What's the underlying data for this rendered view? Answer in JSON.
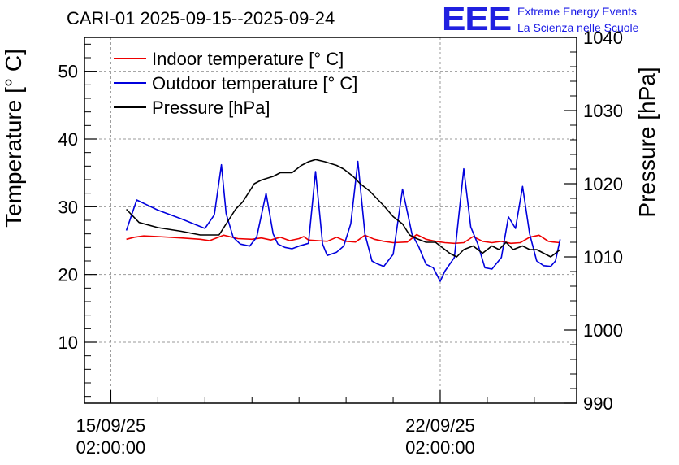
{
  "header": {
    "title": "CARI-01 2025-09-15--2025-09-24",
    "logo_mark": "EEE",
    "logo_line1": "Extreme Energy Events",
    "logo_line2": "La Scienza nelle Scuole"
  },
  "chart_data": {
    "type": "line",
    "title": "CARI-01 2025-09-15--2025-09-24",
    "xlabel": "",
    "ylabel": "Temperature [° C]",
    "y2label": "Pressure [hPa]",
    "ylim": [
      1,
      55
    ],
    "y2lim": [
      990,
      1040
    ],
    "xlim": [
      14.44,
      24.9
    ],
    "xunit": "day of September 2025",
    "xticks": [
      {
        "x": 15.0,
        "line1": "15/09/25",
        "line2": "02:00:00"
      },
      {
        "x": 22.0,
        "line1": "22/09/25",
        "line2": "02:00:00"
      }
    ],
    "yticks": [
      "10",
      "20",
      "30",
      "40",
      "50"
    ],
    "y2ticks": [
      "990",
      "1000",
      "1010",
      "1020",
      "1030",
      "1040"
    ],
    "grid": true,
    "legend_position": "top-left",
    "colors": {
      "indoor": "#ee0000",
      "outdoor": "#0000dd",
      "pressure": "#000000"
    },
    "series": [
      {
        "name": "Indoor temperature [° C]",
        "axis": "left",
        "color": "#ee0000",
        "x": [
          15.33,
          15.5,
          15.7,
          16.0,
          16.5,
          16.9,
          17.1,
          17.4,
          17.7,
          18.0,
          18.2,
          18.4,
          18.6,
          18.8,
          19.0,
          19.1,
          19.2,
          19.4,
          19.6,
          19.8,
          20.0,
          20.2,
          20.4,
          20.6,
          20.8,
          21.0,
          21.3,
          21.5,
          21.7,
          21.9,
          22.1,
          22.3,
          22.5,
          22.7,
          22.9,
          23.1,
          23.3,
          23.5,
          23.7,
          23.9,
          24.1,
          24.3,
          24.4,
          24.55
        ],
        "y": [
          25.2,
          25.5,
          25.7,
          25.6,
          25.4,
          25.2,
          25.0,
          25.8,
          25.3,
          25.2,
          25.4,
          25.1,
          25.5,
          25.0,
          25.3,
          25.6,
          25.1,
          25.0,
          24.9,
          25.5,
          24.9,
          24.8,
          25.8,
          25.2,
          24.9,
          24.7,
          24.8,
          25.9,
          25.2,
          24.9,
          24.7,
          24.6,
          24.7,
          25.6,
          24.9,
          24.7,
          24.9,
          24.6,
          24.7,
          25.5,
          25.8,
          24.9,
          24.8,
          24.7
        ]
      },
      {
        "name": "Outdoor temperature [° C]",
        "axis": "left",
        "color": "#0000dd",
        "x": [
          15.33,
          15.55,
          16.0,
          16.5,
          17.0,
          17.2,
          17.35,
          17.45,
          17.6,
          17.75,
          17.95,
          18.1,
          18.3,
          18.45,
          18.55,
          18.7,
          18.85,
          19.0,
          19.2,
          19.35,
          19.5,
          19.6,
          19.8,
          19.95,
          20.1,
          20.25,
          20.4,
          20.55,
          20.65,
          20.8,
          21.0,
          21.2,
          21.4,
          21.55,
          21.7,
          21.85,
          22.0,
          22.1,
          22.3,
          22.5,
          22.65,
          22.8,
          22.95,
          23.1,
          23.3,
          23.45,
          23.6,
          23.75,
          23.9,
          24.05,
          24.2,
          24.35,
          24.45,
          24.55
        ],
        "y": [
          26.5,
          31.0,
          29.5,
          28.2,
          26.8,
          28.8,
          36.2,
          29.0,
          25.5,
          24.5,
          24.2,
          25.5,
          32.0,
          26.0,
          24.5,
          24.0,
          23.8,
          24.2,
          24.6,
          35.2,
          24.5,
          22.8,
          23.3,
          24.2,
          27.5,
          36.7,
          26.0,
          22.0,
          21.6,
          21.2,
          23.0,
          32.6,
          26.0,
          24.0,
          21.5,
          21.0,
          19.0,
          20.5,
          22.5,
          35.6,
          27.0,
          24.5,
          21.0,
          20.8,
          22.5,
          28.5,
          26.8,
          33.0,
          26.0,
          22.0,
          21.3,
          21.2,
          22.0,
          25.2
        ]
      },
      {
        "name": "Pressure [hPa]",
        "axis": "right",
        "color": "#000000",
        "x": [
          15.33,
          15.6,
          16.0,
          16.5,
          16.9,
          17.3,
          17.5,
          17.65,
          17.8,
          17.95,
          18.05,
          18.2,
          18.45,
          18.6,
          18.85,
          19.05,
          19.2,
          19.35,
          19.55,
          19.8,
          19.95,
          20.15,
          20.3,
          20.5,
          20.8,
          21.0,
          21.2,
          21.35,
          21.5,
          21.7,
          21.9,
          22.2,
          22.35,
          22.5,
          22.7,
          22.9,
          23.1,
          23.25,
          23.4,
          23.55,
          23.75,
          23.9,
          24.05,
          24.2,
          24.35,
          24.45,
          24.55
        ],
        "y": [
          1016.5,
          1014.7,
          1014.0,
          1013.5,
          1013.0,
          1013.0,
          1015.0,
          1016.5,
          1017.5,
          1019.0,
          1020.0,
          1020.5,
          1021.0,
          1021.5,
          1021.5,
          1022.5,
          1023.0,
          1023.3,
          1023.0,
          1022.5,
          1022.0,
          1021.0,
          1020.0,
          1019.0,
          1017.0,
          1015.5,
          1014.5,
          1013.0,
          1012.5,
          1012.0,
          1012.0,
          1010.5,
          1010.0,
          1011.0,
          1011.5,
          1010.5,
          1011.5,
          1011.0,
          1012.0,
          1011.0,
          1011.5,
          1011.0,
          1011.0,
          1010.5,
          1010.0,
          1010.5,
          1011.0
        ]
      }
    ]
  }
}
